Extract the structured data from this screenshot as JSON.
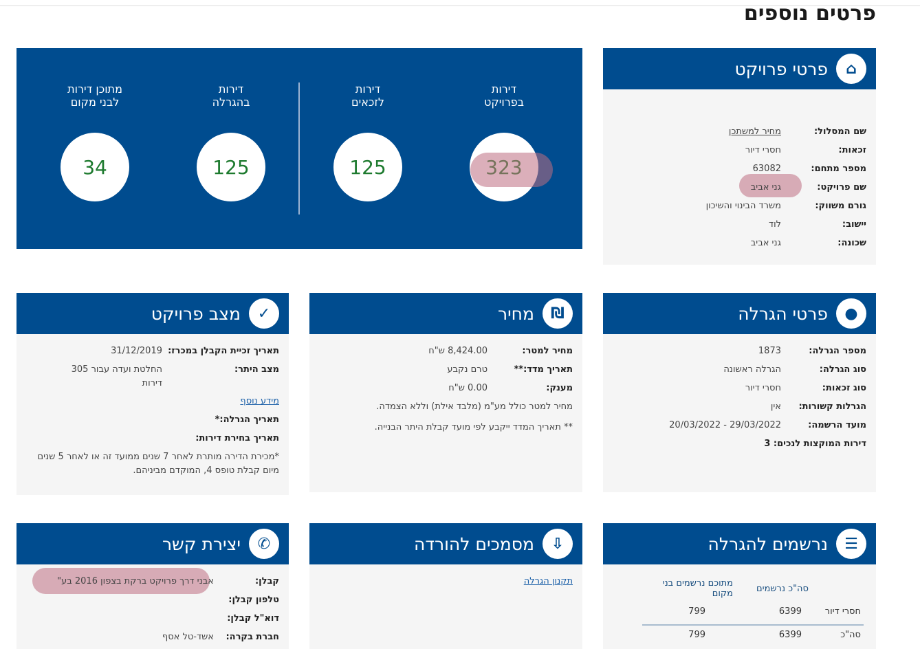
{
  "page_title": "פרטים נוספים",
  "stats": [
    {
      "label_line1": "דירות",
      "label_line2": "בפרויקט",
      "value": "323"
    },
    {
      "label_line1": "דירות",
      "label_line2": "לזכאים",
      "value": "125"
    },
    {
      "label_line1": "דירות",
      "label_line2": "בהגרלה",
      "value": "125"
    },
    {
      "label_line1": "מתוכן דירות",
      "label_line2": "לבני מקום",
      "value": "34"
    }
  ],
  "project_details": {
    "title": "פרטי פרויקט",
    "icon": "home-icon",
    "rows": [
      {
        "label": "שם המסלול:",
        "value": "מחיר למשתכן",
        "link": true
      },
      {
        "label": "זכאות:",
        "value": "חסרי דיור"
      },
      {
        "label": "מספר מתחם:",
        "value": "63082"
      },
      {
        "label": "שם פרויקט:",
        "value": "גני אביב"
      },
      {
        "label": "גורם משווק:",
        "value": "משרד הבינוי והשיכון"
      },
      {
        "label": "יישוב:",
        "value": "לוד"
      },
      {
        "label": "שכונה:",
        "value": "גני אביב"
      }
    ]
  },
  "lottery_details": {
    "title": "פרטי הגרלה",
    "icon": "lottery-balls-icon",
    "rows": [
      {
        "label": "מספר הגרלה:",
        "value": "1873"
      },
      {
        "label": "סוג הגרלה:",
        "value": "הגרלה ראשונה"
      },
      {
        "label": "סוג זכאות:",
        "value": "חסרי דיור"
      },
      {
        "label": "הגרלות קשורות:",
        "value": "אין"
      },
      {
        "label": "מועד הרשמה:",
        "value": "29/03/2022 - 20/03/2022"
      }
    ],
    "disabled_apartments": "דירות המוקצות לנכים: 3"
  },
  "price": {
    "title": "מחיר",
    "icon": "money-bag-icon",
    "rows": [
      {
        "label": "מחיר למטר:",
        "value": "8,424.00 ש\"ח"
      },
      {
        "label": "תאריך מדד:**",
        "value": "טרם נקבע"
      },
      {
        "label": "מענק:",
        "value": "0.00 ש\"ח"
      }
    ],
    "note1": "מחיר למטר כולל מע\"מ (מלבד אילת) וללא הצמדה.",
    "note2": "** תאריך המדד ייקבע לפי מועד קבלת היתר הבנייה."
  },
  "project_status": {
    "title": "מצב פרויקט",
    "icon": "document-check-icon",
    "rows": [
      {
        "label": "תאריך זכיית הקבלן במכרז:",
        "value": "31/12/2019"
      },
      {
        "label": "מצב היתר:",
        "value": "החלטת ועדה עבור 305 דירות"
      }
    ],
    "more_info": "מידע נוסף",
    "lottery_date": "תאריך הגרלה:*",
    "selection_date": "תאריך בחירת דירות:",
    "note": "*מכירת הדירה מותרת לאחר 7 שנים ממועד זה או לאחר 5 שנים מיום קבלת טופס 4, המוקדם מביניהם."
  },
  "registrants": {
    "title": "נרשמים להגרלה",
    "icon": "form-icon",
    "headers": [
      "",
      "סה\"כ נרשמים",
      "מתוכם נרשמים בני מקום"
    ],
    "rows": [
      [
        "חסרי דיור",
        "6399",
        "799"
      ],
      [
        "סה\"כ",
        "6399",
        "799"
      ]
    ]
  },
  "documents": {
    "title": "מסמכים להורדה",
    "icon": "document-download-icon",
    "link": "תקנון הגרלה"
  },
  "contact": {
    "title": "יצירת קשר",
    "icon": "phone-icon",
    "rows": [
      {
        "label": "קבלן:",
        "value": "אבני דרך פרויקט ברקת בצפון 2016 בע\""
      },
      {
        "label": "טלפון קבלן:",
        "value": ""
      },
      {
        "label": "דוא\"ל קבלן:",
        "value": ""
      },
      {
        "label": "חברת בקרה:",
        "value": "אשד-טל אסף"
      }
    ]
  }
}
